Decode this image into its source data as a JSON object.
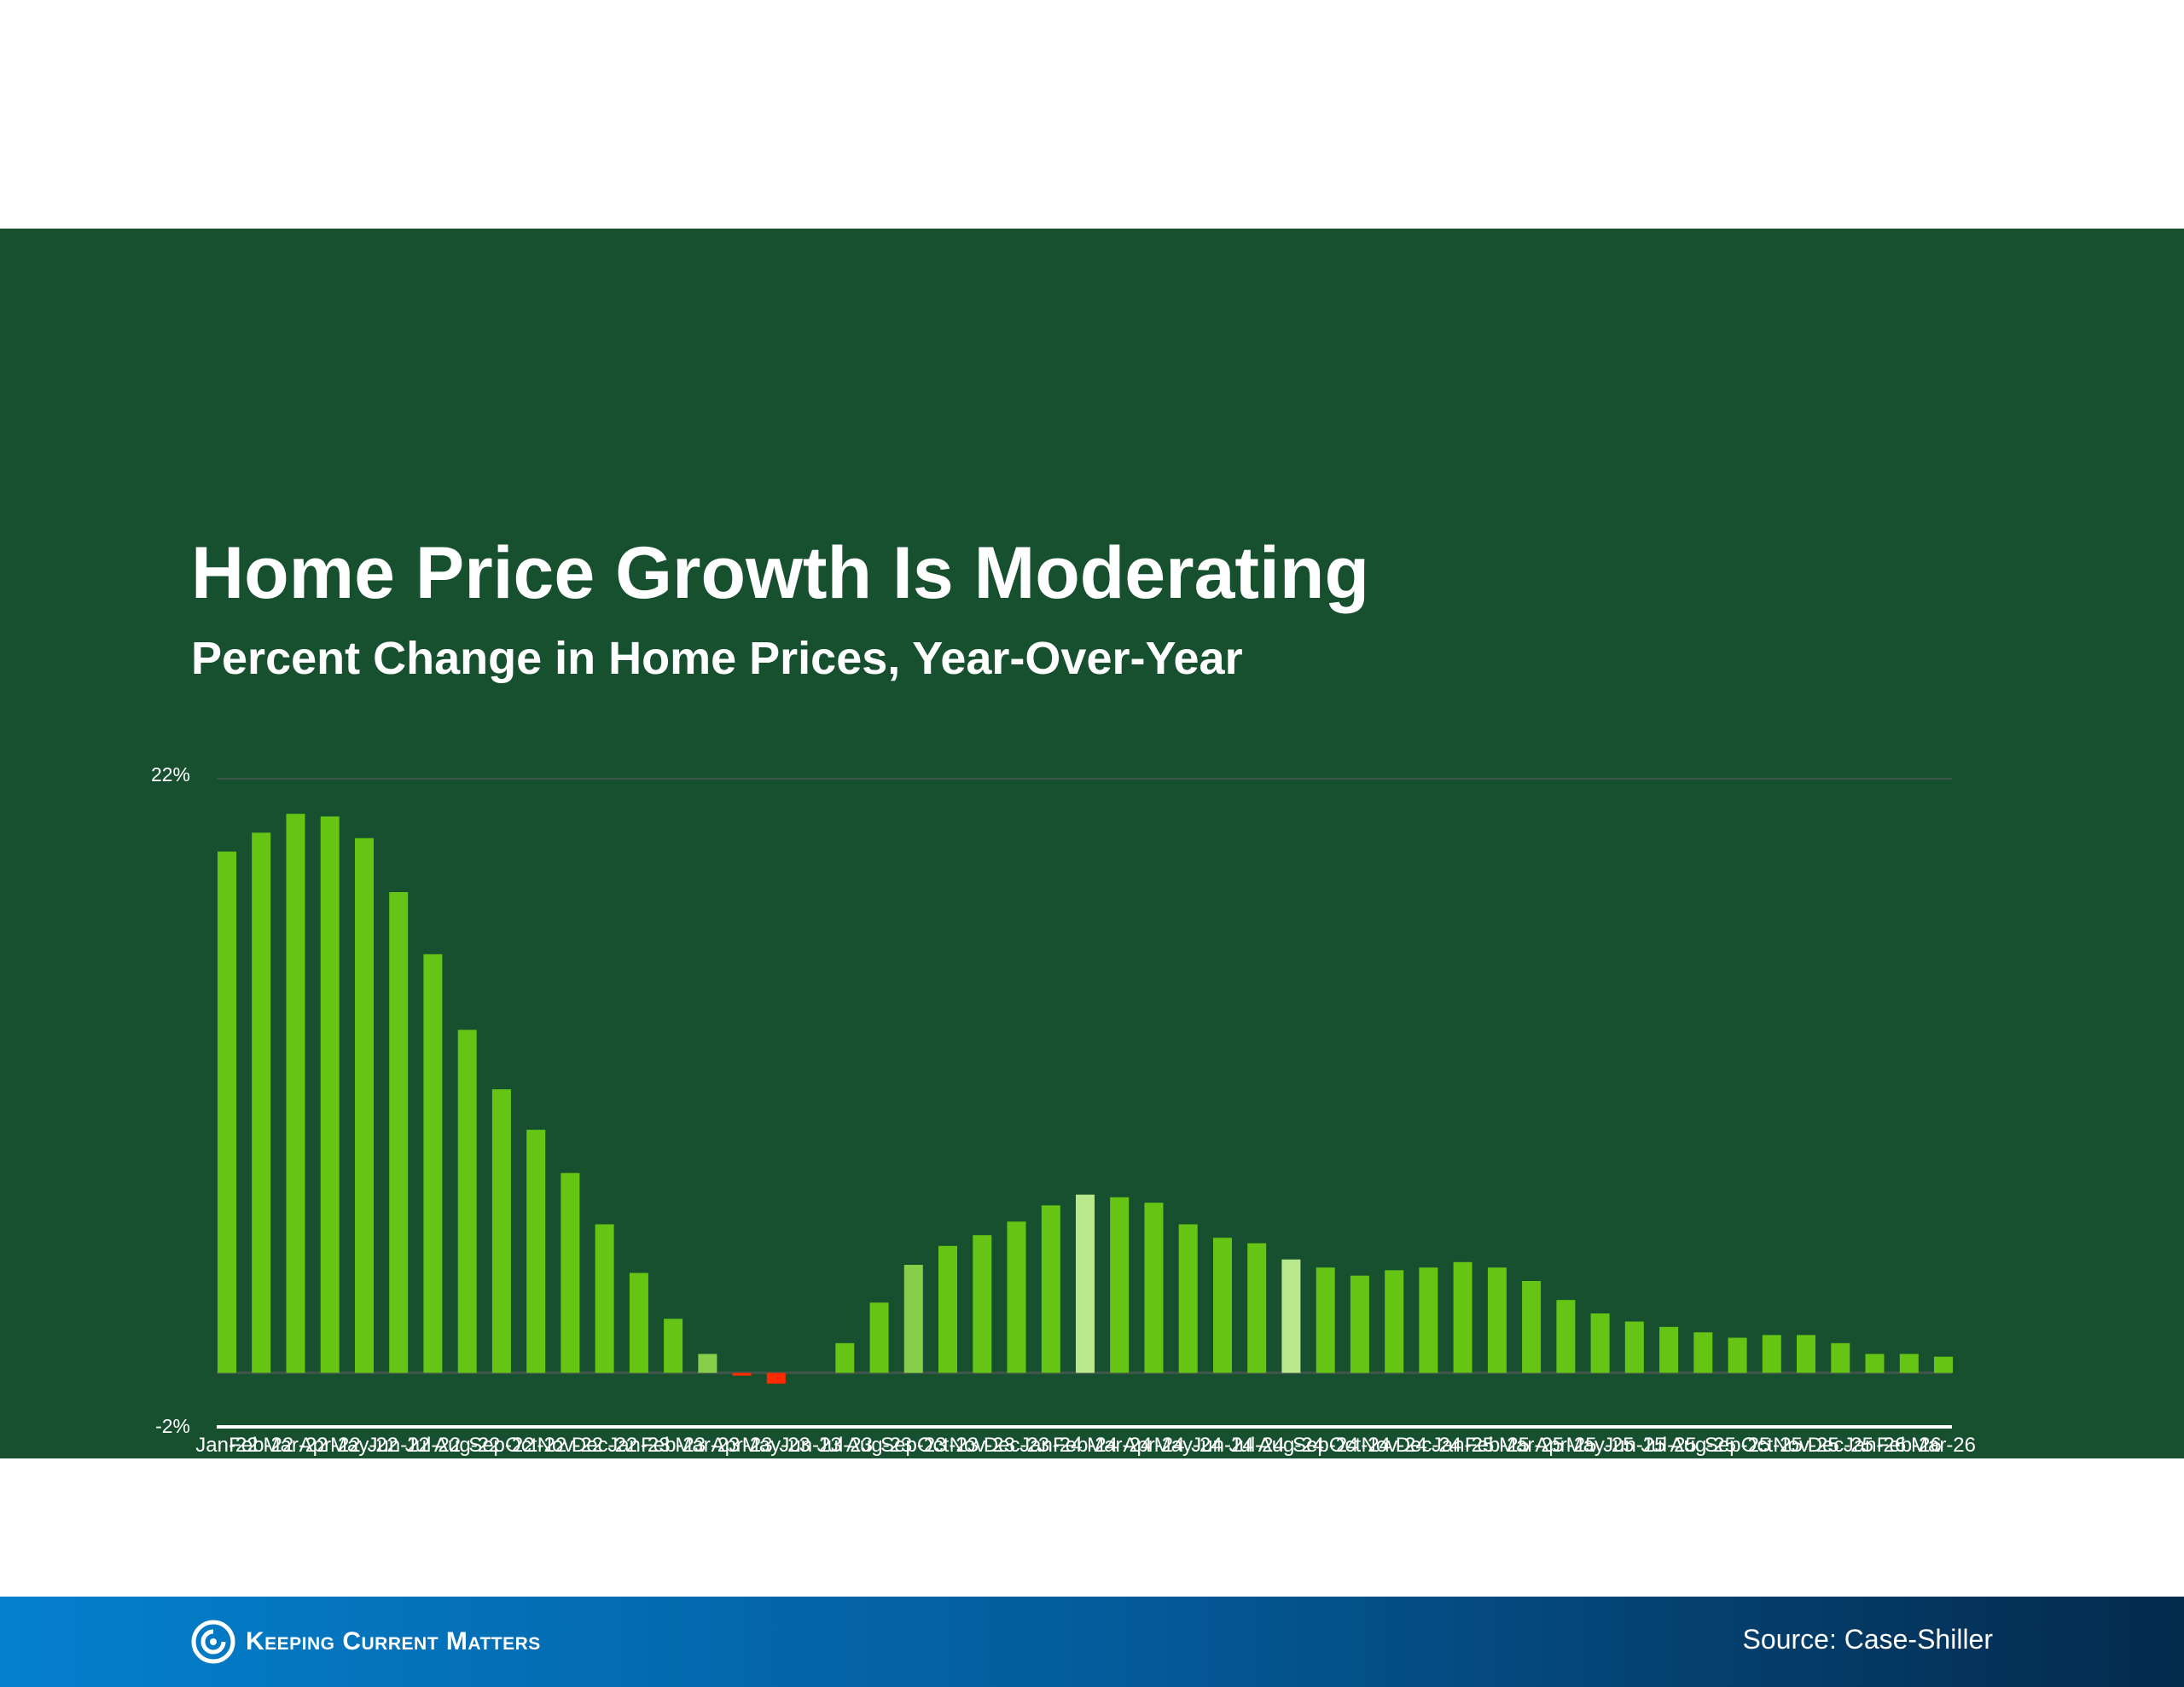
{
  "slide": {
    "title": "Home Price Growth Is Moderating",
    "subtitle": "Percent Change in Home Prices, Year-Over-Year"
  },
  "footer": {
    "brand": "Keeping Current Matters",
    "source": "Source: Case-Shiller"
  },
  "colors": {
    "background": "#17502f",
    "bar": "#66c414",
    "highlight_dim": "#87cf4a",
    "highlight_bright": "#b9e88c",
    "negative": "#ff2a00",
    "gridline": "#3f5549",
    "axis": "#ffffff"
  },
  "chart_data": {
    "type": "bar",
    "ylim": [
      -2,
      22
    ],
    "ytick_labels": [
      "22%",
      "-2%"
    ],
    "grid": true,
    "legend": "none",
    "categories": [
      "Jan-22",
      "Feb-22",
      "Mar-22",
      "Apr-22",
      "May-22",
      "Jun-22",
      "Jul-22",
      "Aug-22",
      "Sep-22",
      "Oct-22",
      "Nov-22",
      "Dec-22",
      "Jan-23",
      "Feb-23",
      "Mar-23",
      "Apr-23",
      "May-23",
      "Jun-23",
      "Jul-23",
      "Aug-23",
      "Sep-23",
      "Oct-23",
      "Nov-23",
      "Dec-23",
      "Jan-24",
      "Feb-24",
      "Mar-24",
      "Apr-24",
      "May-24",
      "Jun-24",
      "Jul-24",
      "Aug-24",
      "Sep-24",
      "Oct-24",
      "Nov-24",
      "Dec-24",
      "Jan-25",
      "Feb-25",
      "Mar-25",
      "Apr-25",
      "May-25",
      "Jun-25",
      "Jul-25",
      "Aug-25",
      "Sep-25",
      "Oct-25",
      "Nov-25",
      "Dec-25",
      "Jan-26",
      "Feb-26",
      "Mar-26"
    ],
    "values": [
      19.3,
      20.0,
      20.7,
      20.6,
      19.8,
      17.8,
      15.5,
      12.7,
      10.5,
      9.0,
      7.4,
      5.5,
      3.7,
      2.0,
      0.7,
      -0.1,
      -0.4,
      0.0,
      1.1,
      2.6,
      4.0,
      4.7,
      5.1,
      5.6,
      6.2,
      6.6,
      6.5,
      6.3,
      5.5,
      5.0,
      4.8,
      4.2,
      3.9,
      3.6,
      3.8,
      3.9,
      4.1,
      3.9,
      3.4,
      2.7,
      2.2,
      1.9,
      1.7,
      1.5,
      1.3,
      1.4,
      1.4,
      1.1,
      0.7,
      0.7,
      0.6
    ],
    "highlights": {
      "dim": [
        14,
        20
      ],
      "bright": [
        25,
        31
      ]
    }
  }
}
